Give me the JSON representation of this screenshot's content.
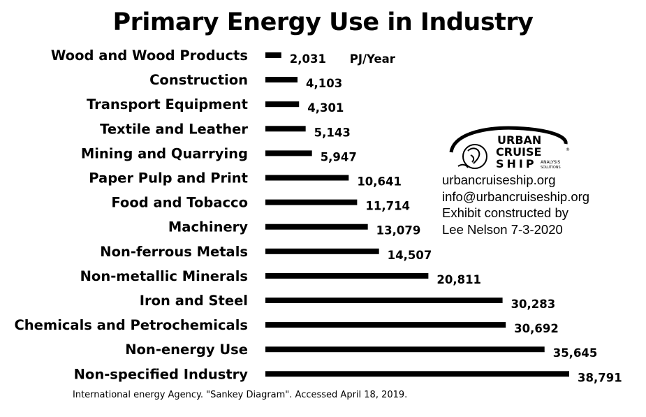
{
  "chart_data": {
    "type": "bar",
    "orientation": "horizontal",
    "title": "Primary Energy Use in Industry",
    "unit_label": "PJ/Year",
    "categories": [
      "Wood and Wood Products",
      "Construction",
      "Transport Equipment",
      "Textile and Leather",
      "Mining and Quarrying",
      "Paper Pulp and Print",
      "Food and Tobacco",
      "Machinery",
      "Non-ferrous Metals",
      "Non-metallic Minerals",
      "Iron and Steel",
      "Chemicals and Petrochemicals",
      "Non-energy Use",
      "Non-specified Industry"
    ],
    "values": [
      2031,
      4103,
      4301,
      5143,
      5947,
      10641,
      11714,
      13079,
      14507,
      20811,
      30283,
      30692,
      35645,
      38791
    ],
    "value_labels": [
      "2,031",
      "4,103",
      "4,301",
      "5,143",
      "5,947",
      "10,641",
      "11,714",
      "13,079",
      "14,507",
      "20,811",
      "30,283",
      "30,692",
      "35,645",
      "38,791"
    ],
    "bar_color": "#000000",
    "grid": false,
    "legend": "none"
  },
  "logo": {
    "text_line1": "URBAN",
    "text_line2": "CRUISE",
    "text_line3": "SHIP",
    "text_sub1": "ANALYSIS",
    "text_sub2": "SOLUTIONS",
    "registered": "®"
  },
  "credits": {
    "website": "urbancruiseship.org",
    "email": "info@urbancruiseship.org",
    "line3": "Exhibit constructed by",
    "line4": "Lee Nelson 7-3-2020"
  },
  "source": "International energy Agency. \"Sankey Diagram\". Accessed April 18, 2019."
}
